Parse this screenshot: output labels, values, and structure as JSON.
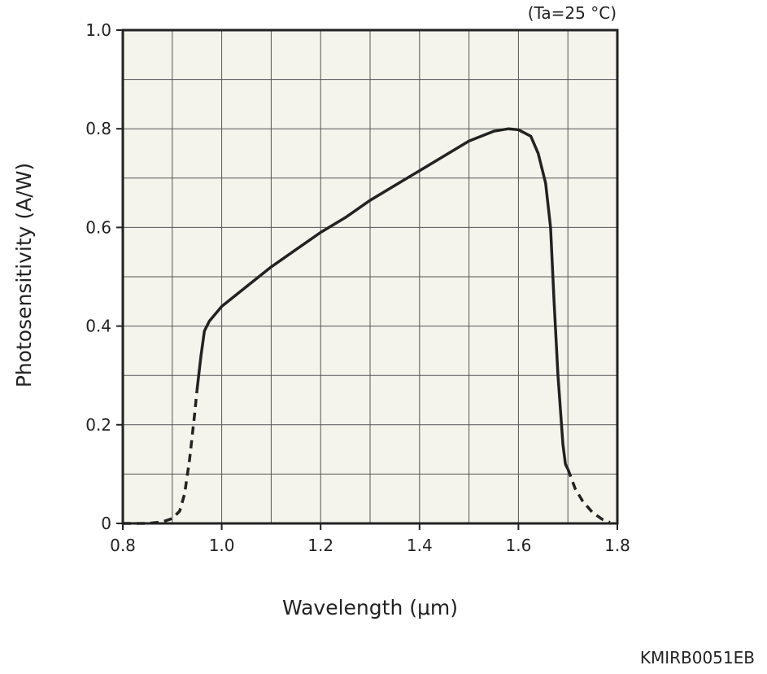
{
  "chart_data": {
    "type": "line",
    "condition": "(Ta=25 °C)",
    "xlabel": "Wavelength (μm)",
    "ylabel": "Photosensitivity (A/W)",
    "xlim": [
      0.8,
      1.8
    ],
    "ylim": [
      0,
      1.0
    ],
    "x_ticks": [
      0.8,
      1.0,
      1.2,
      1.4,
      1.6,
      1.8
    ],
    "x_tick_labels": [
      "0.8",
      "1.0",
      "1.2",
      "1.4",
      "1.6",
      "1.8"
    ],
    "y_ticks": [
      0,
      0.2,
      0.4,
      0.6,
      0.8,
      1.0
    ],
    "y_tick_labels": [
      "0",
      "0.2",
      "0.4",
      "0.6",
      "0.8",
      "1.0"
    ],
    "grid": true,
    "grid_x_step": 0.1,
    "grid_y_step": 0.1,
    "plot_background": "#f4f4ec",
    "line_color": "#222222",
    "series": [
      {
        "style": "dashed",
        "points": [
          [
            0.8,
            0.0
          ],
          [
            0.85,
            0.0
          ],
          [
            0.88,
            0.003
          ],
          [
            0.9,
            0.01
          ],
          [
            0.915,
            0.025
          ],
          [
            0.925,
            0.06
          ],
          [
            0.935,
            0.13
          ],
          [
            0.945,
            0.22
          ],
          [
            0.95,
            0.27
          ]
        ]
      },
      {
        "style": "solid",
        "points": [
          [
            0.95,
            0.27
          ],
          [
            0.958,
            0.34
          ],
          [
            0.965,
            0.39
          ],
          [
            0.975,
            0.41
          ],
          [
            1.0,
            0.44
          ],
          [
            1.05,
            0.48
          ],
          [
            1.1,
            0.52
          ],
          [
            1.15,
            0.555
          ],
          [
            1.2,
            0.59
          ],
          [
            1.25,
            0.62
          ],
          [
            1.3,
            0.655
          ],
          [
            1.35,
            0.685
          ],
          [
            1.4,
            0.715
          ],
          [
            1.45,
            0.745
          ],
          [
            1.5,
            0.775
          ],
          [
            1.55,
            0.795
          ],
          [
            1.58,
            0.8
          ],
          [
            1.6,
            0.798
          ],
          [
            1.625,
            0.785
          ],
          [
            1.64,
            0.75
          ],
          [
            1.655,
            0.69
          ],
          [
            1.665,
            0.6
          ],
          [
            1.672,
            0.45
          ],
          [
            1.68,
            0.3
          ],
          [
            1.69,
            0.16
          ],
          [
            1.695,
            0.12
          ],
          [
            1.7,
            0.11
          ]
        ]
      },
      {
        "style": "dashed",
        "points": [
          [
            1.7,
            0.11
          ],
          [
            1.715,
            0.07
          ],
          [
            1.73,
            0.045
          ],
          [
            1.75,
            0.022
          ],
          [
            1.77,
            0.008
          ],
          [
            1.785,
            0.002
          ]
        ]
      }
    ]
  },
  "footer": {
    "code": "KMIRB0051EB"
  }
}
